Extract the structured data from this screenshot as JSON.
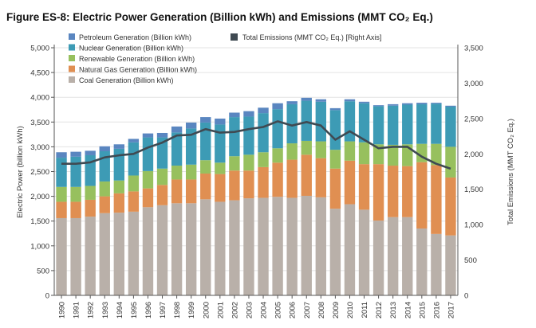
{
  "chart_data": {
    "type": "bar",
    "stacked": true,
    "title": "Figure ES-8:  Electric Power Generation (Billion kWh) and Emissions (MMT CO₂ Eq.)",
    "ylabel": "Electric Power (billion kWh)",
    "y2label": "Total Emissions (MMT CO₂ Eq.)",
    "ylim": [
      0,
      5000
    ],
    "y2lim": [
      0,
      3500
    ],
    "y_ticks": [
      "0",
      "500",
      "1,000",
      "1,500",
      "2,000",
      "2,500",
      "3,000",
      "3,500",
      "4,000",
      "4,500",
      "5,000"
    ],
    "y2_ticks": [
      "0",
      "500",
      "1,000",
      "1,500",
      "2,000",
      "2,500",
      "3,000",
      "3,500"
    ],
    "categories": [
      "1990",
      "1991",
      "1992",
      "1993",
      "1994",
      "1995",
      "1996",
      "1997",
      "1998",
      "1999",
      "2000",
      "2001",
      "2002",
      "2003",
      "2004",
      "2005",
      "2006",
      "2007",
      "2008",
      "2009",
      "2010",
      "2011",
      "2012",
      "2013",
      "2014",
      "2015",
      "2016",
      "2017"
    ],
    "series": [
      {
        "name": "Coal Generation (Billion kWh)",
        "color": "#b9b0a9",
        "values": [
          1560,
          1560,
          1590,
          1660,
          1670,
          1690,
          1780,
          1820,
          1860,
          1860,
          1940,
          1890,
          1920,
          1960,
          1970,
          1990,
          1970,
          2010,
          1980,
          1750,
          1840,
          1730,
          1510,
          1580,
          1580,
          1350,
          1240,
          1210
        ]
      },
      {
        "name": "Natural Gas Generation (Billion kWh)",
        "color": "#e08f52",
        "values": [
          330,
          330,
          340,
          340,
          390,
          410,
          380,
          410,
          480,
          480,
          520,
          560,
          600,
          560,
          620,
          690,
          770,
          830,
          790,
          810,
          880,
          920,
          1140,
          1040,
          1030,
          1340,
          1390,
          1170
        ]
      },
      {
        "name": "Renewable Generation (Billion kWh)",
        "color": "#97c05e",
        "values": [
          300,
          300,
          280,
          300,
          260,
          320,
          350,
          330,
          280,
          300,
          270,
          230,
          290,
          320,
          300,
          290,
          330,
          280,
          340,
          380,
          390,
          440,
          400,
          420,
          440,
          370,
          430,
          620
        ]
      },
      {
        "name": "Nuclear Generation (Billion kWh)",
        "color": "#3d9bb5",
        "values": [
          590,
          610,
          620,
          610,
          640,
          670,
          680,
          630,
          670,
          730,
          760,
          770,
          790,
          770,
          790,
          790,
          790,
          810,
          800,
          800,
          810,
          790,
          770,
          790,
          800,
          800,
          810,
          810
        ]
      },
      {
        "name": "Petroleum Generation (Billion kWh)",
        "color": "#5a86c0",
        "values": [
          110,
          100,
          90,
          100,
          90,
          70,
          80,
          90,
          120,
          120,
          110,
          120,
          90,
          110,
          110,
          120,
          60,
          60,
          50,
          40,
          40,
          30,
          20,
          30,
          30,
          30,
          20,
          20
        ]
      }
    ],
    "line_series": {
      "name": "Total Emissions (MMT CO₂ Eq.) [Right Axis]",
      "color": "#3f4a52",
      "axis": "right",
      "values": [
        1860,
        1860,
        1880,
        1950,
        1980,
        2000,
        2090,
        2160,
        2260,
        2270,
        2350,
        2300,
        2310,
        2350,
        2380,
        2460,
        2400,
        2450,
        2400,
        2200,
        2320,
        2200,
        2080,
        2100,
        2100,
        1960,
        1860,
        1790
      ]
    },
    "legend": {
      "bar_order": [
        4,
        3,
        2,
        1,
        0
      ],
      "line_label": "Total Emissions (MMT CO₂ Eq.) [Right Axis]"
    }
  }
}
